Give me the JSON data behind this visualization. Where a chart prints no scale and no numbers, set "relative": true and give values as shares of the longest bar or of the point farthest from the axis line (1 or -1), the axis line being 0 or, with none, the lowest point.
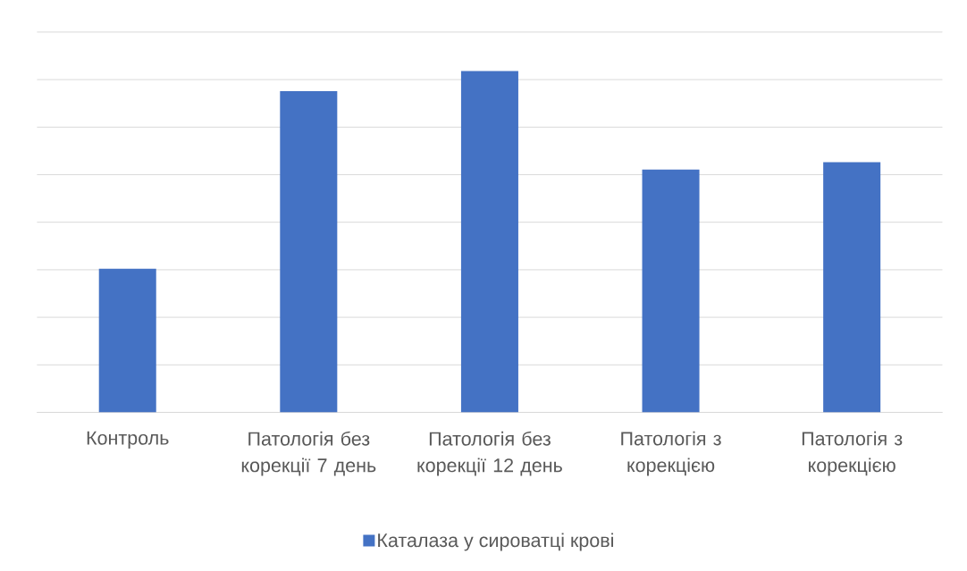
{
  "chart_data": {
    "type": "bar",
    "categories": [
      "Контроль",
      "Патологія без корекції 7 день",
      "Патологія без корекції 12 день",
      "Патологія з корекцією",
      "Патологія з корекцією"
    ],
    "series": [
      {
        "name": "Каталаза у сироватці крові",
        "color": "#4472c4",
        "values": [
          0.421,
          0.941,
          1,
          0.711,
          0.733
        ]
      }
    ],
    "relative": true,
    "grid": "y",
    "legend": "bottom"
  }
}
